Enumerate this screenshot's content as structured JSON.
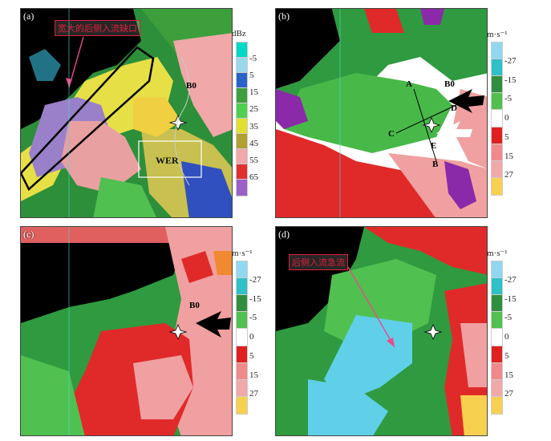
{
  "panels": [
    {
      "id": "a",
      "label": "(a)",
      "field": "reflectivity"
    },
    {
      "id": "b",
      "label": "(b)",
      "field": "velocity"
    },
    {
      "id": "c",
      "label": "(c)",
      "field": "velocity"
    },
    {
      "id": "d",
      "label": "(d)",
      "field": "velocity"
    }
  ],
  "annotations": {
    "a_notch": "宽大的后侧入流缺口",
    "a_wer": "WER",
    "a_b0": "B0",
    "b_b0": "B0",
    "b_A": "A",
    "b_B": "B",
    "b_C": "C",
    "b_D": "D",
    "b_E": "E",
    "c_b0": "B0",
    "d_rij": "后侧入流急流"
  },
  "colorbars": {
    "reflectivity": {
      "unit": "dBz",
      "ticks": [
        "-5",
        "5",
        "15",
        "25",
        "35",
        "45",
        "55",
        "65"
      ],
      "colors": [
        "#00d8c8",
        "#9ad8ec",
        "#2a63c8",
        "#3f9f3f",
        "#50d050",
        "#e0e030",
        "#b0a030",
        "#f0a8a8",
        "#e03030",
        "#9a60c8"
      ]
    },
    "velocity": {
      "unit": "m·s⁻¹",
      "ticks": [
        "-27",
        "-15",
        "-5",
        "0",
        "5",
        "15",
        "27"
      ],
      "colors": [
        "#8fd8f0",
        "#2fc0c8",
        "#2f8f3f",
        "#50c050",
        "#ffffff",
        "#e02020",
        "#f08a8a",
        "#f0a8a8",
        "#f8d050"
      ]
    }
  },
  "colors": {
    "annotation_red": "#e0203a",
    "velocity_green": "#2f9a3f",
    "velocity_red": "#e02a2a",
    "velocity_pink": "#f0a0a0",
    "velocity_cyan": "#5fd0e8"
  }
}
